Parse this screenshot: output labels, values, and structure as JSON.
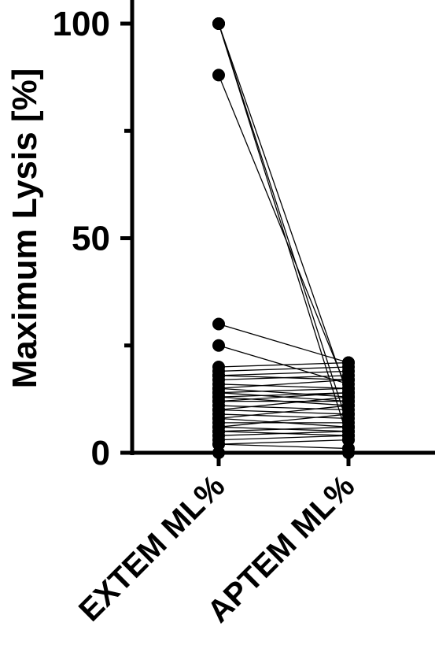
{
  "chart_data": {
    "type": "scatter",
    "subtype": "before-after paired plot",
    "title": "",
    "ylabel": "Maximum Lysis [%]",
    "xlabel": "",
    "categories": [
      "EXTEM ML%",
      "APTEM ML%"
    ],
    "ylim": [
      0,
      100
    ],
    "yticks": [
      0,
      50,
      100
    ],
    "grid": false,
    "legend": "none",
    "marker_color": "#000000",
    "pairs": [
      [
        100,
        13
      ],
      [
        88,
        14
      ],
      [
        100,
        6
      ],
      [
        100,
        3
      ],
      [
        30,
        21
      ],
      [
        25,
        16
      ],
      [
        20,
        21
      ],
      [
        19,
        20
      ],
      [
        18,
        19
      ],
      [
        18,
        17
      ],
      [
        17,
        18
      ],
      [
        16,
        15
      ],
      [
        15,
        17
      ],
      [
        15,
        13
      ],
      [
        14,
        15
      ],
      [
        14,
        12
      ],
      [
        13,
        14
      ],
      [
        13,
        11
      ],
      [
        12,
        12
      ],
      [
        12,
        14
      ],
      [
        11,
        10
      ],
      [
        10,
        13
      ],
      [
        10,
        9
      ],
      [
        9,
        8
      ],
      [
        8,
        11
      ],
      [
        8,
        6
      ],
      [
        7,
        7
      ],
      [
        6,
        5
      ],
      [
        6,
        9
      ],
      [
        5,
        4
      ],
      [
        5,
        6
      ],
      [
        4,
        5
      ],
      [
        3,
        4
      ],
      [
        2,
        3
      ],
      [
        2,
        1
      ],
      [
        0,
        0
      ]
    ]
  }
}
